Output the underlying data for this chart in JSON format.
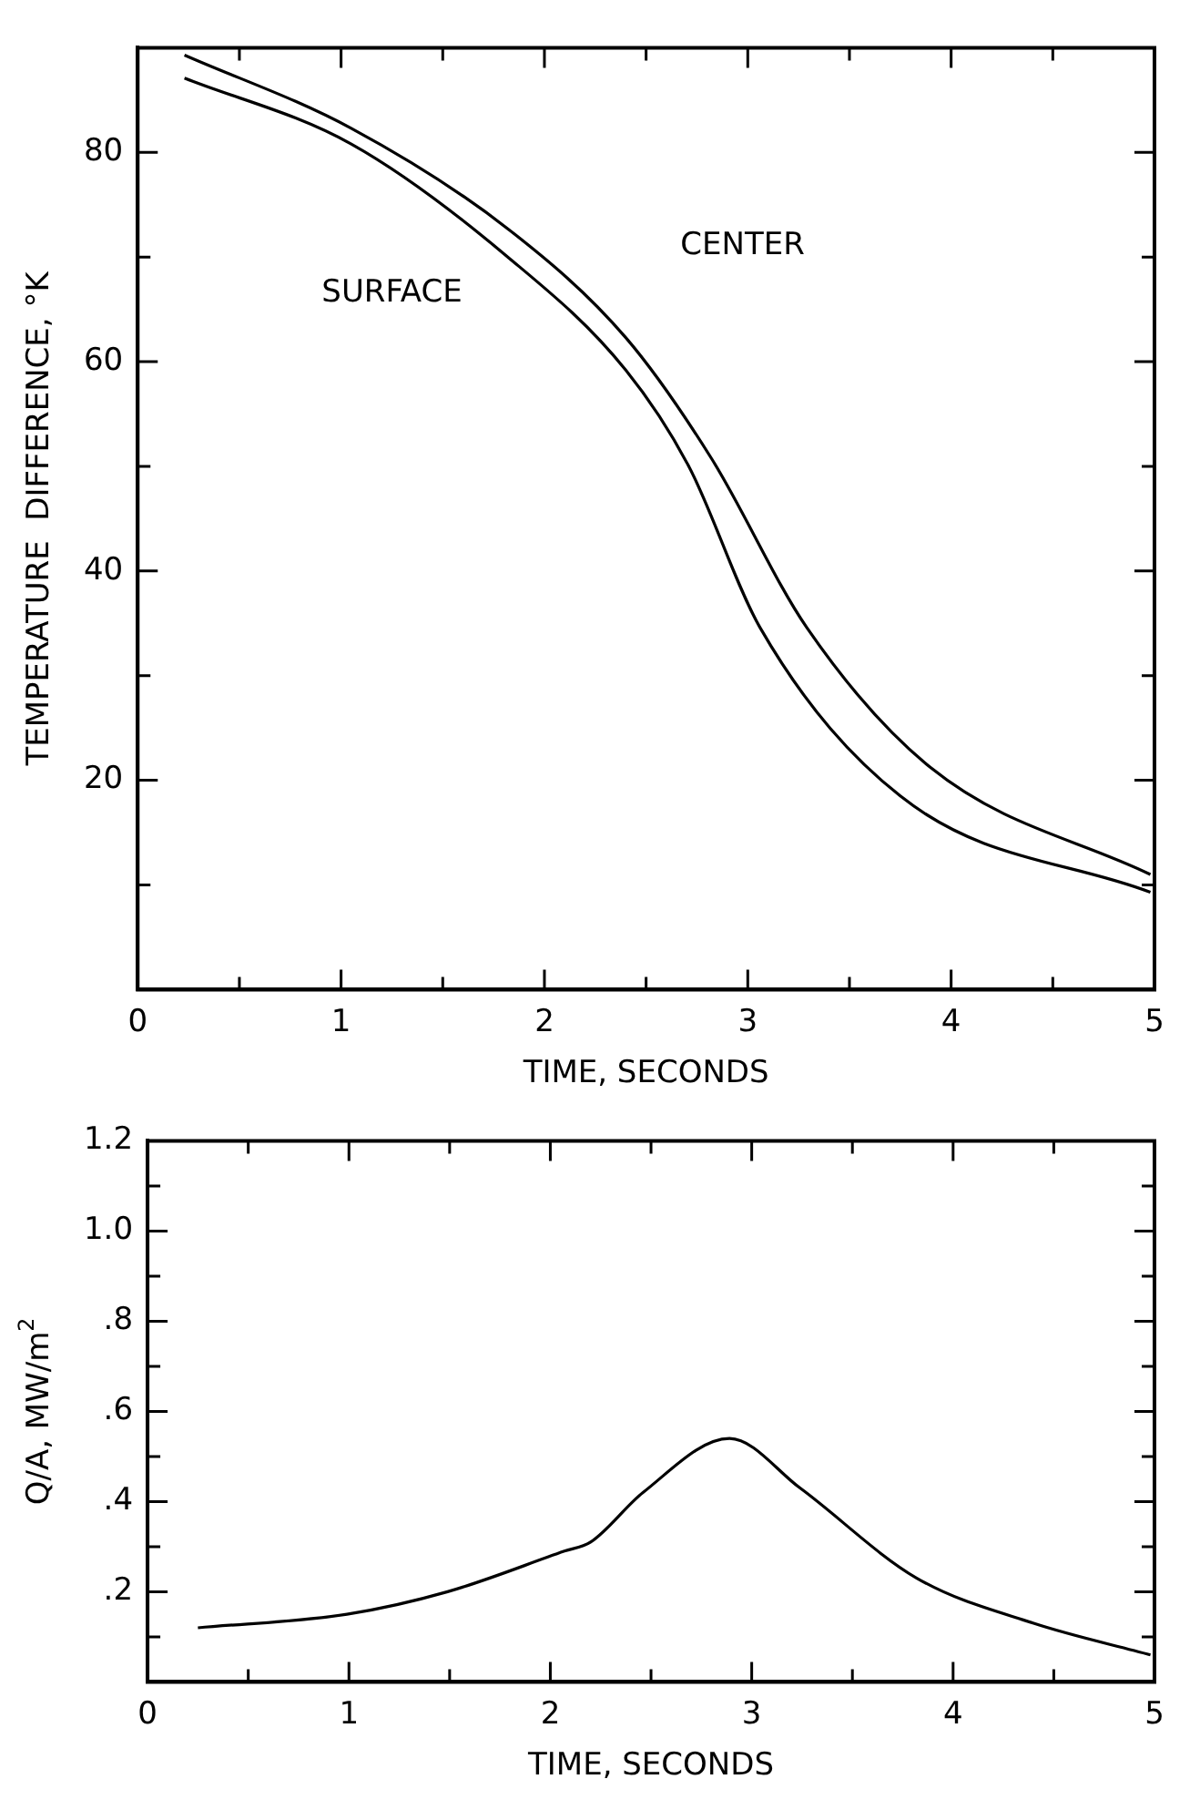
{
  "chart_data": [
    {
      "type": "line",
      "xlabel": "TIME, SECONDS",
      "ylabel": "TEMPERATURE  DIFFERENCE, °K",
      "xlim": [
        0,
        5
      ],
      "ylim": [
        0,
        90
      ],
      "xticks": [
        0,
        {
          "value": 0.5,
          "label": null
        },
        1,
        {
          "value": 1.5,
          "label": null
        },
        2,
        {
          "value": 2.5,
          "label": null
        },
        3,
        {
          "value": 3.5,
          "label": null
        },
        4,
        {
          "value": 4.5,
          "label": null
        },
        5
      ],
      "yticks": [
        {
          "value": 10,
          "label": null
        },
        20,
        {
          "value": 30,
          "label": null
        },
        40,
        {
          "value": 50,
          "label": null
        },
        60,
        {
          "value": 70,
          "label": null
        },
        80
      ],
      "grid": false,
      "legend": false,
      "marker": "none",
      "line_style": "solid",
      "series": [
        {
          "name": "CENTER",
          "color": "#000000",
          "x": [
            0.23,
            1.05,
            1.82,
            2.4,
            2.82,
            3.29,
            3.9,
            4.98
          ],
          "values": [
            89.3,
            82.3,
            72.7,
            62.3,
            50.8,
            34.6,
            21.2,
            11.0
          ]
        },
        {
          "name": "SURFACE",
          "color": "#000000",
          "x": [
            0.23,
            1.05,
            1.82,
            2.4,
            2.71,
            3.06,
            3.75,
            4.98
          ],
          "values": [
            87.1,
            80.8,
            70.0,
            59.2,
            50.0,
            34.6,
            18.5,
            9.3
          ]
        }
      ]
    },
    {
      "type": "line",
      "xlabel": "TIME, SECONDS",
      "ylabel": "Q/A, MW/m$^{2}$",
      "xlim": [
        0,
        5
      ],
      "ylim": [
        0,
        1.2
      ],
      "xticks": [
        0,
        {
          "value": 0.5,
          "label": null
        },
        1,
        {
          "value": 1.5,
          "label": null
        },
        2,
        {
          "value": 2.5,
          "label": null
        },
        3,
        {
          "value": 3.5,
          "label": null
        },
        4,
        {
          "value": 4.5,
          "label": null
        },
        5
      ],
      "yticks": [
        {
          "value": 0.1,
          "label": null
        },
        {
          "value": 0.2,
          "label": ".2"
        },
        {
          "value": 0.3,
          "label": null
        },
        {
          "value": 0.4,
          "label": ".4"
        },
        {
          "value": 0.5,
          "label": null
        },
        {
          "value": 0.6,
          "label": ".6"
        },
        {
          "value": 0.7,
          "label": null
        },
        {
          "value": 0.8,
          "label": ".8"
        },
        {
          "value": 0.9,
          "label": null
        },
        {
          "value": 1.0,
          "label": "1.0"
        },
        {
          "value": 1.1,
          "label": null
        },
        {
          "value": 1.2,
          "label": "1.2"
        }
      ],
      "grid": false,
      "legend": false,
      "marker": "none",
      "line_style": "solid",
      "series": [
        {
          "color": "#000000",
          "x": [
            0.25,
            0.99,
            1.49,
            2.07,
            2.2,
            2.46,
            2.89,
            3.24,
            3.82,
            4.4,
            4.98
          ],
          "values": [
            0.12,
            0.15,
            0.2,
            0.29,
            0.31,
            0.42,
            0.54,
            0.43,
            0.23,
            0.13,
            0.06
          ]
        }
      ]
    }
  ]
}
